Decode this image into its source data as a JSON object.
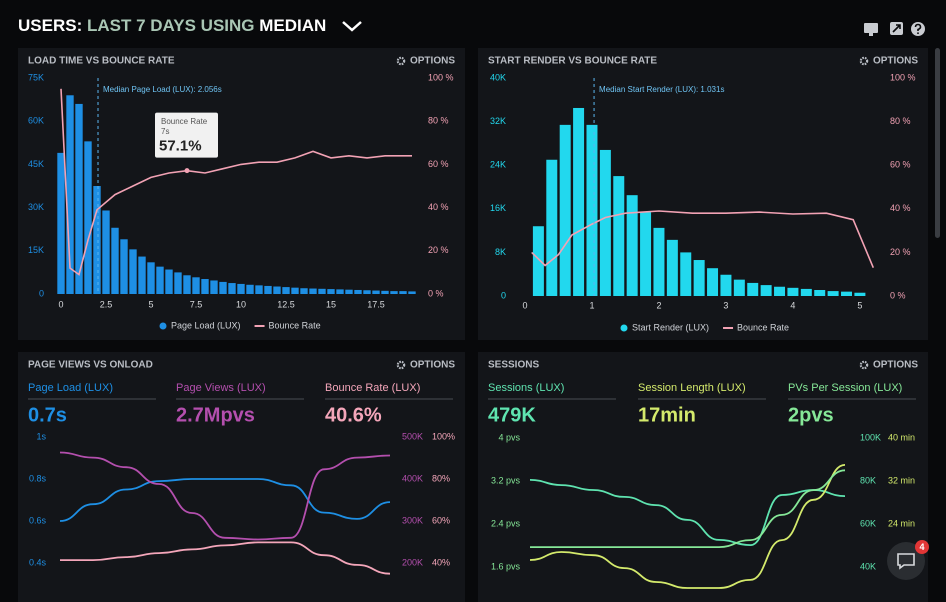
{
  "header": {
    "title": [
      "USERS:",
      "LAST 7 DAYS",
      "USING",
      "MEDIAN"
    ]
  },
  "panels": [
    {
      "type": "bar",
      "title": "LOAD TIME VS BOUNCE RATE",
      "options": "OPTIONS",
      "xlim": [
        -0.5,
        20
      ],
      "xticks": [
        0,
        2.5,
        5,
        7.5,
        10,
        12.5,
        15,
        17.5
      ],
      "ylim": [
        0,
        75000
      ],
      "yticks": [
        0,
        {
          "value": 15000,
          "label": "15K"
        },
        {
          "value": 30000,
          "label": "30K"
        },
        {
          "value": 45000,
          "label": "45K"
        },
        {
          "value": 60000,
          "label": "60K"
        },
        {
          "value": 75000,
          "label": "75K"
        }
      ],
      "y2lim": [
        0,
        100
      ],
      "y2ticks": [
        {
          "value": 0,
          "label": "0 %"
        },
        {
          "value": 20,
          "label": "20 %"
        },
        {
          "value": 40,
          "label": "40 %"
        },
        {
          "value": 60,
          "label": "60 %"
        },
        {
          "value": 80,
          "label": "80 %"
        },
        {
          "value": 100,
          "label": "100 %"
        }
      ],
      "series": [
        {
          "name": "Page Load (LUX)",
          "type": "bar",
          "color": "#1e8fe4",
          "x": [
            0,
            0.5,
            1,
            1.5,
            2,
            2.5,
            3,
            3.5,
            4,
            4.5,
            5,
            5.5,
            6,
            6.5,
            7,
            7.5,
            8,
            8.5,
            9,
            9.5,
            10,
            10.5,
            11,
            11.5,
            12,
            12.5,
            13,
            13.5,
            14,
            14.5,
            15,
            15.5,
            16,
            16.5,
            17,
            17.5,
            18,
            18.5,
            19,
            19.5
          ],
          "values": [
            49000,
            69000,
            66000,
            53000,
            37500,
            29000,
            23000,
            19000,
            15500,
            13000,
            11000,
            9500,
            8500,
            7500,
            6500,
            5800,
            5200,
            4700,
            4200,
            3800,
            3500,
            3200,
            3000,
            2800,
            2600,
            2400,
            2200,
            2000,
            1900,
            1800,
            1700,
            1600,
            1500,
            1400,
            1300,
            1200,
            1100,
            1000,
            1000,
            900
          ]
        },
        {
          "name": "Bounce Rate",
          "type": "line",
          "axis": "y2",
          "color": "#f2a2b4",
          "x": [
            0,
            0.5,
            1,
            1.5,
            2,
            3,
            4,
            5,
            6,
            7,
            8,
            9,
            10,
            11,
            12,
            13,
            14,
            15,
            16,
            17,
            18,
            19.5
          ],
          "values": [
            95,
            12,
            9,
            25,
            39,
            46,
            50,
            54,
            56,
            57.1,
            56,
            58,
            60,
            61,
            61,
            63,
            66,
            63,
            64,
            63,
            64,
            64
          ]
        }
      ],
      "median": {
        "label": "Median Page Load (LUX): 2.056s",
        "value": 2.056
      },
      "tooltip": {
        "title": "Bounce Rate",
        "x_label": "7s",
        "value_label": "57.1%",
        "x": 7,
        "value": 57.1
      }
    },
    {
      "type": "bar",
      "title": "START RENDER VS BOUNCE RATE",
      "options": "OPTIONS",
      "xlim": [
        -0.2,
        5.3
      ],
      "xticks": [
        0,
        1,
        2,
        3,
        4,
        5
      ],
      "ylim": [
        0,
        40000
      ],
      "yticks": [
        0,
        {
          "value": 8000,
          "label": "8K"
        },
        {
          "value": 16000,
          "label": "16K"
        },
        {
          "value": 24000,
          "label": "24K"
        },
        {
          "value": 32000,
          "label": "32K"
        },
        {
          "value": 40000,
          "label": "40K"
        }
      ],
      "y2lim": [
        0,
        100
      ],
      "y2ticks": [
        {
          "value": 0,
          "label": "0 %"
        },
        {
          "value": 20,
          "label": "20 %"
        },
        {
          "value": 40,
          "label": "40 %"
        },
        {
          "value": 60,
          "label": "60 %"
        },
        {
          "value": 80,
          "label": "80 %"
        },
        {
          "value": 100,
          "label": "100 %"
        }
      ],
      "series": [
        {
          "name": "Start Render (LUX)",
          "type": "bar",
          "color": "#22d8ee",
          "x": [
            0.2,
            0.4,
            0.6,
            0.8,
            1,
            1.2,
            1.4,
            1.6,
            1.8,
            2,
            2.2,
            2.4,
            2.6,
            2.8,
            3,
            3.2,
            3.4,
            3.6,
            3.8,
            4,
            4.2,
            4.4,
            4.6,
            4.8,
            5
          ],
          "values": [
            12800,
            25000,
            31400,
            34500,
            31400,
            26800,
            22000,
            18500,
            15400,
            12500,
            10300,
            8000,
            6600,
            5100,
            3900,
            3000,
            2400,
            2000,
            1700,
            1500,
            1300,
            1100,
            900,
            800,
            600
          ]
        },
        {
          "name": "Bounce Rate",
          "type": "line",
          "axis": "y2",
          "color": "#f2a2b4",
          "x": [
            0.1,
            0.3,
            0.5,
            0.7,
            1,
            1.2,
            1.5,
            2,
            2.5,
            3,
            3.5,
            4,
            4.5,
            4.9,
            5.2
          ],
          "values": [
            20,
            14,
            19,
            28,
            33,
            36,
            38,
            39,
            38,
            38,
            38.5,
            37.6,
            38,
            35,
            13
          ]
        }
      ],
      "median": {
        "label": "Median Start Render (LUX): 1.031s",
        "value": 1.031
      }
    },
    {
      "type": "line",
      "title": "PAGE VIEWS VS ONLOAD",
      "options": "OPTIONS",
      "ylim": [
        0.3,
        1
      ],
      "yticks": [
        {
          "value": 1,
          "label": "1s"
        },
        {
          "value": 0.8,
          "label": "0.8s"
        },
        {
          "value": 0.6,
          "label": "0.6s"
        },
        {
          "value": 0.4,
          "label": "0.4s"
        }
      ],
      "y2lim": [
        150000,
        500000
      ],
      "y2ticks": [
        {
          "value": 500000,
          "label": "500K"
        },
        {
          "value": 400000,
          "label": "400K"
        },
        {
          "value": 300000,
          "label": "300K"
        },
        {
          "value": 200000,
          "label": "200K"
        }
      ],
      "y3lim": [
        30,
        100
      ],
      "y3ticks": [
        {
          "value": 100,
          "label": "100%"
        },
        {
          "value": 80,
          "label": "80%"
        },
        {
          "value": 60,
          "label": "60%"
        },
        {
          "value": 40,
          "label": "40%"
        }
      ],
      "series": [
        {
          "name": "Page Load (LUX)",
          "kpi": "0.7s",
          "axis": "y",
          "color": "#1e8fe4",
          "values": [
            0.6,
            0.68,
            0.75,
            0.79,
            0.8,
            0.8,
            0.8,
            0.77,
            0.64,
            0.61,
            0.69
          ]
        },
        {
          "name": "Page Views (LUX)",
          "kpi": "2.7Mpvs",
          "axis": "y2",
          "color": "#b44fae",
          "values": [
            463000,
            451000,
            428000,
            388000,
            319000,
            260000,
            256000,
            260000,
            423000,
            451000,
            456000
          ]
        },
        {
          "name": "Bounce Rate (LUX)",
          "kpi": "40.6%",
          "axis": "y3",
          "color": "#f4a6ba",
          "values": [
            41.4,
            41.4,
            42.8,
            44.7,
            46.5,
            48.4,
            49.8,
            49.8,
            43.7,
            39.1,
            34.9
          ]
        }
      ]
    },
    {
      "type": "line",
      "title": "SESSIONS",
      "options": "OPTIONS",
      "ylim": [
        1.2,
        4
      ],
      "yticks": [
        {
          "value": 4,
          "label": "4 pvs"
        },
        {
          "value": 3.2,
          "label": "3.2 pvs"
        },
        {
          "value": 2.4,
          "label": "2.4 pvs"
        },
        {
          "value": 1.6,
          "label": "1.6 pvs"
        }
      ],
      "y2lim": [
        30000,
        100000
      ],
      "y2ticks": [
        {
          "value": 100000,
          "label": "100K"
        },
        {
          "value": 80000,
          "label": "80K"
        },
        {
          "value": 60000,
          "label": "60K"
        },
        {
          "value": 40000,
          "label": "40K"
        }
      ],
      "y3lim": [
        12,
        40
      ],
      "y3ticks": [
        {
          "value": 40,
          "label": "40 min"
        },
        {
          "value": 32,
          "label": "32 min"
        },
        {
          "value": 24,
          "label": "24 min"
        }
      ],
      "series": [
        {
          "name": "Sessions (LUX)",
          "kpi": "479K",
          "axis": "y2",
          "color": "#5fe4b0",
          "values": [
            80500,
            78100,
            75800,
            72600,
            68800,
            61900,
            52600,
            50200,
            73500,
            75800,
            73000
          ]
        },
        {
          "name": "Session Length (LUX)",
          "kpi": "17min",
          "axis": "y3",
          "color": "#d4ea6c",
          "values": [
            17.3,
            18.8,
            18.2,
            15.8,
            13.2,
            12.1,
            12.1,
            13.6,
            21,
            28.5,
            35
          ]
        },
        {
          "name": "PVs Per Session (LUX)",
          "kpi": "2pvs",
          "axis": "y",
          "color": "#86e898",
          "values": [
            1.97,
            1.97,
            1.97,
            1.97,
            1.97,
            1.97,
            1.97,
            2.1,
            2.57,
            3.03,
            3.4
          ]
        }
      ]
    }
  ],
  "chat": {
    "badge": "4"
  }
}
